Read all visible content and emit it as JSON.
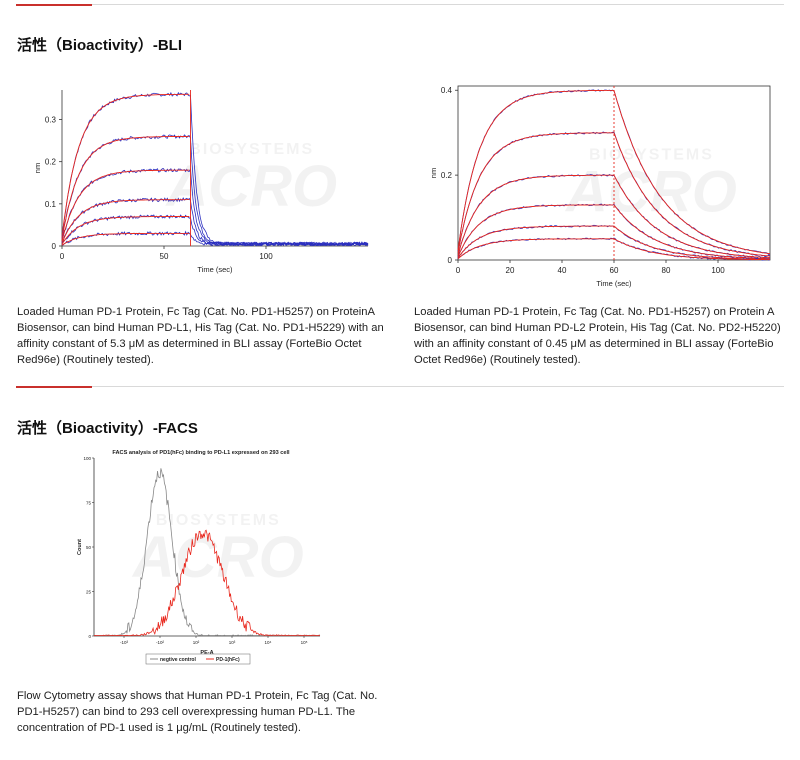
{
  "colors": {
    "accent": "#c9302c",
    "fit": "#e8281e",
    "data": "#2b2fbf",
    "neg": "#888888"
  },
  "bli_section": {
    "title": "活性（Bioactivity）-BLI",
    "left": {
      "caption": "Loaded Human PD-1 Protein, Fc Tag (Cat. No. PD1-H5257) on ProteinA Biosensor, can bind Human PD-L1, His Tag (Cat. No. PD1-H5229) with an affinity constant of 5.3 μM as determined in BLI assay (ForteBio Octet Red96e) (Routinely tested)."
    },
    "right": {
      "caption": "Loaded Human PD-1 Protein, Fc Tag (Cat. No. PD1-H5257) on Protein A Biosensor, can bind Human PD-L2 Protein, His Tag (Cat. No. PD2-H5220) with an affinity constant of 0.45 μM as determined in BLI assay (ForteBio Octet Red96e) (Routinely tested)."
    }
  },
  "facs_section": {
    "title": "活性（Bioactivity）-FACS",
    "caption": "Flow Cytometry assay shows that Human PD-1 Protein, Fc Tag (Cat. No. PD1-H5257) can bind to 293 cell overexpressing human PD-L1. The concentration of PD-1 used is 1 μg/mL (Routinely tested)."
  },
  "watermark": {
    "text1": "BIOSYSTEMS",
    "text2": "ACRO"
  },
  "chart_data": [
    {
      "type": "line",
      "xlabel": "Time (sec)",
      "ylabel": "nm",
      "xlim": [
        0,
        150
      ],
      "ylim": [
        0,
        0.37
      ],
      "xticks": [
        0,
        50,
        100
      ],
      "xtick_labels": [
        "0",
        "50",
        "100"
      ],
      "yticks": [
        0,
        0.1,
        0.2,
        0.3
      ],
      "ytick_labels": [
        "0",
        "0.1",
        "0.2",
        "0.3"
      ],
      "assoc_end": 63,
      "series": [
        {
          "values_plateau": 0.36
        },
        {
          "values_plateau": 0.26
        },
        {
          "values_plateau": 0.18
        },
        {
          "values_plateau": 0.11
        },
        {
          "values_plateau": 0.07
        },
        {
          "values_plateau": 0.03
        }
      ]
    },
    {
      "type": "line",
      "xlabel": "Time (sec)",
      "ylabel": "nm",
      "xlim": [
        0,
        120
      ],
      "ylim": [
        0,
        0.41
      ],
      "xticks": [
        0,
        20,
        40,
        60,
        80,
        100
      ],
      "xtick_labels": [
        "0",
        "20",
        "40",
        "60",
        "80",
        "100"
      ],
      "yticks": [
        0,
        0.2,
        0.4
      ],
      "ytick_labels": [
        "0",
        "0.2",
        "0.4"
      ],
      "assoc_end": 60,
      "series": [
        {
          "values_plateau": 0.4
        },
        {
          "values_plateau": 0.3
        },
        {
          "values_plateau": 0.2
        },
        {
          "values_plateau": 0.13
        },
        {
          "values_plateau": 0.08
        },
        {
          "values_plateau": 0.05
        }
      ]
    },
    {
      "type": "area",
      "title": "FACS analysis of PD1(hFc) binding to PD-L1 expressed on 293 cell",
      "xlabel": "PE-A",
      "ylabel": "Count",
      "ylim": [
        0,
        100
      ],
      "yticks": [
        0,
        25,
        50,
        75,
        100
      ],
      "ytick_labels": [
        "0",
        "25",
        "50",
        "75",
        "100"
      ],
      "xtick_labels": [
        "-10³",
        "-10²",
        "10²",
        "10³",
        "10⁴",
        "10⁵"
      ],
      "legend": [
        "negtive control",
        "PD-1(hFc)"
      ],
      "series": [
        {
          "name": "negtive control",
          "peak_x": 0.29,
          "peak_y": 92,
          "width": 0.055
        },
        {
          "name": "PD-1(hFc)",
          "peak_x": 0.48,
          "peak_y": 58,
          "width": 0.09
        }
      ]
    }
  ]
}
